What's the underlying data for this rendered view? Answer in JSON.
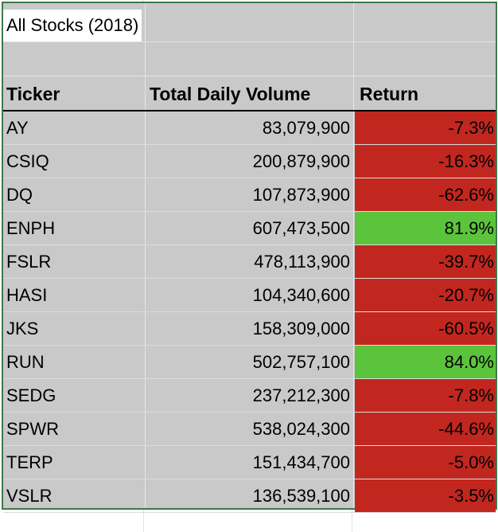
{
  "title": "All Stocks (2018)",
  "headers": {
    "ticker": "Ticker",
    "volume": "Total Daily Volume",
    "return": "Return"
  },
  "colors": {
    "negative": "#c1271f",
    "positive": "#5cc43c",
    "selection_border": "#3c7a47",
    "range_fill": "#c9c9c9"
  },
  "rows": [
    {
      "ticker": "AY",
      "volume": "83,079,900",
      "return": "-7.3%",
      "status": "negative"
    },
    {
      "ticker": "CSIQ",
      "volume": "200,879,900",
      "return": "-16.3%",
      "status": "negative"
    },
    {
      "ticker": "DQ",
      "volume": "107,873,900",
      "return": "-62.6%",
      "status": "negative"
    },
    {
      "ticker": "ENPH",
      "volume": "607,473,500",
      "return": "81.9%",
      "status": "positive"
    },
    {
      "ticker": "FSLR",
      "volume": "478,113,900",
      "return": "-39.7%",
      "status": "negative"
    },
    {
      "ticker": "HASI",
      "volume": "104,340,600",
      "return": "-20.7%",
      "status": "negative"
    },
    {
      "ticker": "JKS",
      "volume": "158,309,000",
      "return": "-60.5%",
      "status": "negative"
    },
    {
      "ticker": "RUN",
      "volume": "502,757,100",
      "return": "84.0%",
      "status": "positive"
    },
    {
      "ticker": "SEDG",
      "volume": "237,212,300",
      "return": "-7.8%",
      "status": "negative"
    },
    {
      "ticker": "SPWR",
      "volume": "538,024,300",
      "return": "-44.6%",
      "status": "negative"
    },
    {
      "ticker": "TERP",
      "volume": "151,434,700",
      "return": "-5.0%",
      "status": "negative"
    },
    {
      "ticker": "VSLR",
      "volume": "136,539,100",
      "return": "-3.5%",
      "status": "negative"
    }
  ]
}
